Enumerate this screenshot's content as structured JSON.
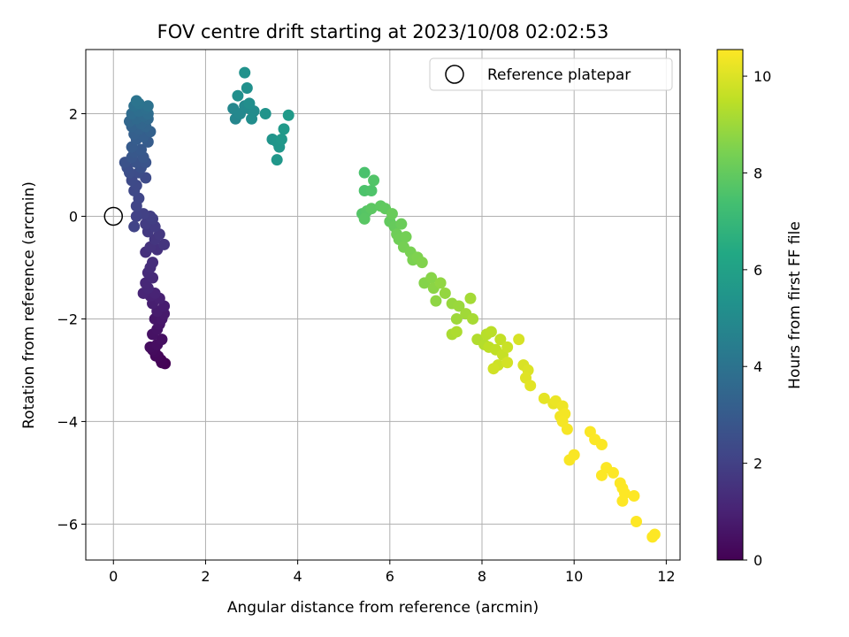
{
  "chart_data": {
    "type": "scatter",
    "title": "FOV centre drift starting at 2023/10/08 02:02:53",
    "xlabel": "Angular distance from reference (arcmin)",
    "ylabel": "Rotation from reference (arcmin)",
    "xlim": [
      -0.6,
      12.3
    ],
    "ylim": [
      -6.7,
      3.25
    ],
    "x_ticks": [
      0,
      2,
      4,
      6,
      8,
      10,
      12
    ],
    "y_ticks": [
      -6,
      -4,
      -2,
      0,
      2
    ],
    "grid": true,
    "legend": {
      "position": "top-right",
      "entries": [
        "Reference platepar"
      ]
    },
    "reference_point": {
      "x": 0,
      "y": 0,
      "marker": "open-circle"
    },
    "colorbar": {
      "label": "Hours from first FF file",
      "range": [
        0,
        10.55
      ],
      "ticks": [
        0,
        2,
        4,
        6,
        8,
        10
      ],
      "colormap": "viridis"
    },
    "points": [
      [
        1.12,
        -2.87,
        0.0
      ],
      [
        1.05,
        -2.85,
        0.05
      ],
      [
        1.03,
        -2.8,
        0.1
      ],
      [
        0.97,
        -2.73,
        0.15
      ],
      [
        0.92,
        -2.72,
        0.2
      ],
      [
        0.9,
        -2.65,
        0.25
      ],
      [
        0.85,
        -2.6,
        0.3
      ],
      [
        0.8,
        -2.55,
        0.35
      ],
      [
        0.95,
        -2.5,
        0.4
      ],
      [
        1.05,
        -2.4,
        0.45
      ],
      [
        0.85,
        -2.3,
        0.5
      ],
      [
        0.95,
        -2.2,
        0.55
      ],
      [
        1.0,
        -2.1,
        0.6
      ],
      [
        0.9,
        -2.0,
        0.65
      ],
      [
        1.05,
        -2.0,
        0.7
      ],
      [
        1.1,
        -1.9,
        0.75
      ],
      [
        0.95,
        -1.85,
        0.8
      ],
      [
        1.1,
        -1.75,
        0.85
      ],
      [
        0.85,
        -1.7,
        0.9
      ],
      [
        1.0,
        -1.6,
        0.95
      ],
      [
        0.8,
        -1.55,
        1.0
      ],
      [
        0.9,
        -1.5,
        1.05
      ],
      [
        0.65,
        -1.5,
        1.1
      ],
      [
        0.75,
        -1.4,
        1.15
      ],
      [
        0.7,
        -1.3,
        1.2
      ],
      [
        0.85,
        -1.2,
        1.25
      ],
      [
        0.75,
        -1.1,
        1.3
      ],
      [
        0.8,
        -1.0,
        1.35
      ],
      [
        0.85,
        -0.9,
        1.4
      ],
      [
        0.7,
        -0.7,
        1.45
      ],
      [
        0.95,
        -0.65,
        1.5
      ],
      [
        0.8,
        -0.6,
        1.55
      ],
      [
        1.1,
        -0.55,
        1.6
      ],
      [
        0.9,
        -0.45,
        1.65
      ],
      [
        1.0,
        -0.35,
        1.7
      ],
      [
        0.75,
        -0.3,
        1.75
      ],
      [
        0.9,
        -0.2,
        1.8
      ],
      [
        0.7,
        -0.15,
        1.85
      ],
      [
        0.85,
        -0.05,
        1.9
      ],
      [
        0.8,
        0.0,
        1.95
      ],
      [
        0.65,
        0.05,
        2.0
      ],
      [
        0.5,
        0.0,
        2.05
      ],
      [
        0.45,
        -0.2,
        2.1
      ],
      [
        0.5,
        0.2,
        2.15
      ],
      [
        0.55,
        0.35,
        2.2
      ],
      [
        0.45,
        0.5,
        2.25
      ],
      [
        0.5,
        0.6,
        2.3
      ],
      [
        0.4,
        0.7,
        2.35
      ],
      [
        0.7,
        0.75,
        2.4
      ],
      [
        0.55,
        0.85,
        2.45
      ],
      [
        0.35,
        0.85,
        2.5
      ],
      [
        0.3,
        0.95,
        2.55
      ],
      [
        0.6,
        0.95,
        2.6
      ],
      [
        0.25,
        1.05,
        2.65
      ],
      [
        0.5,
        1.05,
        2.7
      ],
      [
        0.7,
        1.05,
        2.75
      ],
      [
        0.4,
        1.15,
        2.8
      ],
      [
        0.65,
        1.15,
        2.85
      ],
      [
        0.45,
        1.25,
        2.9
      ],
      [
        0.6,
        1.3,
        2.95
      ],
      [
        0.4,
        1.35,
        3.0
      ],
      [
        0.75,
        1.45,
        3.05
      ],
      [
        0.5,
        1.5,
        3.1
      ],
      [
        0.65,
        1.55,
        3.15
      ],
      [
        0.45,
        1.6,
        3.2
      ],
      [
        0.8,
        1.65,
        3.25
      ],
      [
        0.55,
        1.7,
        3.3
      ],
      [
        0.4,
        1.75,
        3.35
      ],
      [
        0.7,
        1.75,
        3.4
      ],
      [
        0.6,
        1.8,
        3.45
      ],
      [
        0.35,
        1.85,
        3.5
      ],
      [
        0.75,
        1.9,
        3.55
      ],
      [
        0.5,
        1.9,
        3.6
      ],
      [
        0.65,
        1.95,
        3.65
      ],
      [
        0.4,
        2.0,
        3.7
      ],
      [
        0.75,
        2.0,
        3.75
      ],
      [
        0.55,
        2.05,
        3.8
      ],
      [
        0.7,
        2.1,
        3.85
      ],
      [
        0.45,
        2.15,
        3.9
      ],
      [
        0.75,
        2.15,
        3.95
      ],
      [
        0.55,
        2.2,
        4.0
      ],
      [
        0.5,
        2.25,
        4.05
      ],
      [
        2.65,
        1.9,
        4.8
      ],
      [
        2.6,
        2.1,
        4.85
      ],
      [
        2.75,
        2.0,
        4.9
      ],
      [
        2.85,
        2.15,
        4.95
      ],
      [
        2.95,
        2.1,
        5.0
      ],
      [
        3.05,
        2.05,
        5.05
      ],
      [
        3.0,
        1.9,
        5.1
      ],
      [
        2.95,
        2.2,
        5.15
      ],
      [
        2.7,
        2.35,
        5.2
      ],
      [
        2.9,
        2.5,
        5.25
      ],
      [
        2.85,
        2.8,
        5.3
      ],
      [
        3.3,
        2.0,
        5.35
      ],
      [
        3.45,
        1.5,
        5.4
      ],
      [
        3.55,
        1.45,
        5.45
      ],
      [
        3.6,
        1.35,
        5.5
      ],
      [
        3.55,
        1.1,
        5.55
      ],
      [
        3.65,
        1.5,
        5.6
      ],
      [
        3.7,
        1.7,
        5.65
      ],
      [
        3.8,
        1.97,
        5.7
      ],
      [
        5.45,
        0.85,
        7.5
      ],
      [
        5.45,
        0.5,
        7.55
      ],
      [
        5.6,
        0.5,
        7.6
      ],
      [
        5.65,
        0.7,
        7.65
      ],
      [
        5.4,
        0.05,
        7.7
      ],
      [
        5.5,
        0.1,
        7.75
      ],
      [
        5.45,
        -0.05,
        7.8
      ],
      [
        5.6,
        0.15,
        7.85
      ],
      [
        5.8,
        0.2,
        7.9
      ],
      [
        5.9,
        0.15,
        7.95
      ],
      [
        6.0,
        -0.1,
        8.0
      ],
      [
        6.1,
        -0.2,
        8.05
      ],
      [
        6.05,
        0.05,
        8.1
      ],
      [
        6.25,
        -0.15,
        8.15
      ],
      [
        6.15,
        -0.35,
        8.2
      ],
      [
        6.2,
        -0.45,
        8.25
      ],
      [
        6.35,
        -0.4,
        8.3
      ],
      [
        6.3,
        -0.6,
        8.35
      ],
      [
        6.45,
        -0.7,
        8.4
      ],
      [
        6.5,
        -0.85,
        8.45
      ],
      [
        6.6,
        -0.8,
        8.5
      ],
      [
        6.7,
        -0.9,
        8.55
      ],
      [
        6.75,
        -1.3,
        8.6
      ],
      [
        6.9,
        -1.2,
        8.65
      ],
      [
        6.95,
        -1.4,
        8.7
      ],
      [
        7.0,
        -1.65,
        8.75
      ],
      [
        7.1,
        -1.3,
        8.8
      ],
      [
        7.2,
        -1.5,
        8.85
      ],
      [
        7.35,
        -1.7,
        8.9
      ],
      [
        7.5,
        -1.75,
        8.95
      ],
      [
        7.45,
        -2.0,
        9.0
      ],
      [
        7.65,
        -1.9,
        9.05
      ],
      [
        7.75,
        -1.6,
        9.1
      ],
      [
        7.8,
        -2.0,
        9.15
      ],
      [
        7.35,
        -2.3,
        9.2
      ],
      [
        7.45,
        -2.25,
        9.25
      ],
      [
        7.9,
        -2.4,
        9.3
      ],
      [
        8.05,
        -2.5,
        9.35
      ],
      [
        8.1,
        -2.3,
        9.4
      ],
      [
        8.2,
        -2.25,
        9.45
      ],
      [
        8.15,
        -2.55,
        9.5
      ],
      [
        8.3,
        -2.6,
        9.55
      ],
      [
        8.4,
        -2.4,
        9.6
      ],
      [
        8.45,
        -2.7,
        9.65
      ],
      [
        8.55,
        -2.55,
        9.7
      ],
      [
        8.35,
        -2.9,
        9.75
      ],
      [
        8.25,
        -2.97,
        9.8
      ],
      [
        8.55,
        -2.85,
        9.85
      ],
      [
        8.8,
        -2.4,
        9.9
      ],
      [
        8.9,
        -2.9,
        9.95
      ],
      [
        9.0,
        -3.0,
        10.0
      ],
      [
        8.95,
        -3.15,
        10.05
      ],
      [
        9.05,
        -3.3,
        10.1
      ],
      [
        9.35,
        -3.55,
        10.15
      ],
      [
        9.55,
        -3.65,
        10.2
      ],
      [
        9.6,
        -3.6,
        10.25
      ],
      [
        9.75,
        -3.7,
        10.3
      ],
      [
        9.7,
        -3.9,
        10.35
      ],
      [
        9.8,
        -3.85,
        10.4
      ],
      [
        9.75,
        -4.0,
        10.42
      ],
      [
        9.85,
        -4.15,
        10.44
      ],
      [
        9.9,
        -4.75,
        10.46
      ],
      [
        10.0,
        -4.65,
        10.48
      ],
      [
        10.35,
        -4.2,
        10.5
      ],
      [
        10.45,
        -4.35,
        10.51
      ],
      [
        10.6,
        -4.45,
        10.52
      ],
      [
        10.6,
        -5.05,
        10.53
      ],
      [
        10.7,
        -4.9,
        10.53
      ],
      [
        10.85,
        -5.0,
        10.54
      ],
      [
        11.0,
        -5.2,
        10.54
      ],
      [
        11.05,
        -5.3,
        10.54
      ],
      [
        11.1,
        -5.4,
        10.55
      ],
      [
        11.05,
        -5.55,
        10.55
      ],
      [
        11.3,
        -5.45,
        10.55
      ],
      [
        11.35,
        -5.95,
        10.55
      ],
      [
        11.7,
        -6.25,
        10.55
      ],
      [
        11.75,
        -6.2,
        10.55
      ]
    ]
  }
}
